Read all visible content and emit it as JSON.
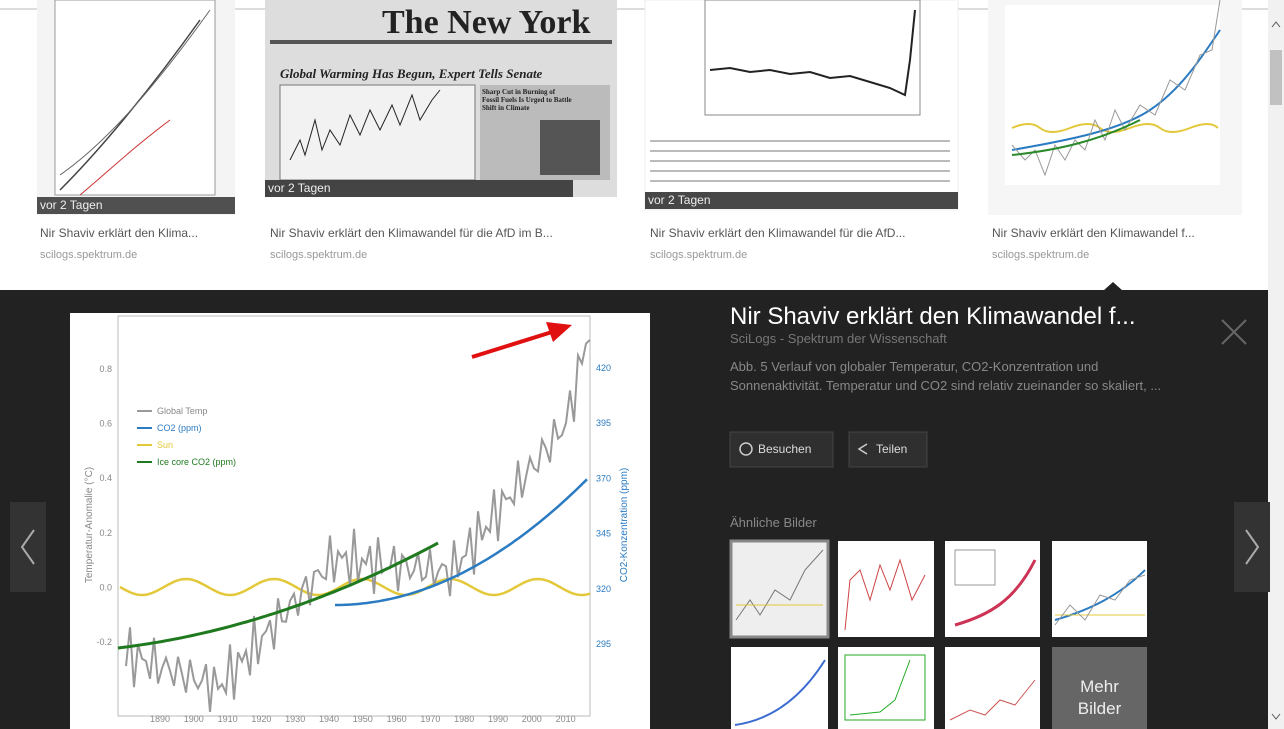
{
  "results": [
    {
      "badge": "vor 2 Tagen",
      "caption": "Nir Shaviv erklärt den Klima...",
      "source": "scilogs.spektrum.de"
    },
    {
      "badge": "vor 2 Tagen",
      "caption": "Nir Shaviv erklärt den Klimawandel für die AfD im B...",
      "source": "scilogs.spektrum.de",
      "masthead": "The New York",
      "headline": "Global Warming Has Begun, Expert Tells Senate",
      "subhead": "Sharp Cut in Burning of Fossil Fuels Is Urged to Battle Shift in Climate"
    },
    {
      "badge": "vor 2 Tagen",
      "caption": "Nir Shaviv erklärt den Klimawandel für die AfD...",
      "source": "scilogs.spektrum.de"
    },
    {
      "caption": "Nir Shaviv erklärt den Klimawandel f...",
      "source": "scilogs.spektrum.de"
    }
  ],
  "preview": {
    "title": "Nir Shaviv erklärt den Klimawandel f...",
    "site": "SciLogs - Spektrum der Wissenschaft",
    "description": "Abb. 5 Verlauf von globaler Temperatur, CO2-Konzentration und Sonnenaktivität. Temperatur und CO2 sind relativ zueinander so skaliert, ...",
    "buttons": [
      "Besuchen",
      "Teilen"
    ],
    "related_heading": "Ähnliche Bilder",
    "more": "Mehr Bilder",
    "image": {
      "y_label": "Temperatur-Anomalie (°C)",
      "y2_label": "CO2-Konzentration (ppm)",
      "y_ticks": [
        "0.8",
        "0.6",
        "0.4",
        "0.2",
        "0.0",
        "-0.2"
      ],
      "y2_ticks": [
        "420",
        "395",
        "370",
        "345",
        "320",
        "295"
      ],
      "x_ticks": [
        "1890",
        "1900",
        "1910",
        "1920",
        "1930",
        "1940",
        "1950",
        "1960",
        "1970",
        "1980",
        "1990",
        "2000",
        "2010"
      ],
      "legend": [
        "Global Temp",
        "CO2 (ppm)",
        "Sun",
        "Ice core CO2 (ppm)"
      ]
    }
  }
}
